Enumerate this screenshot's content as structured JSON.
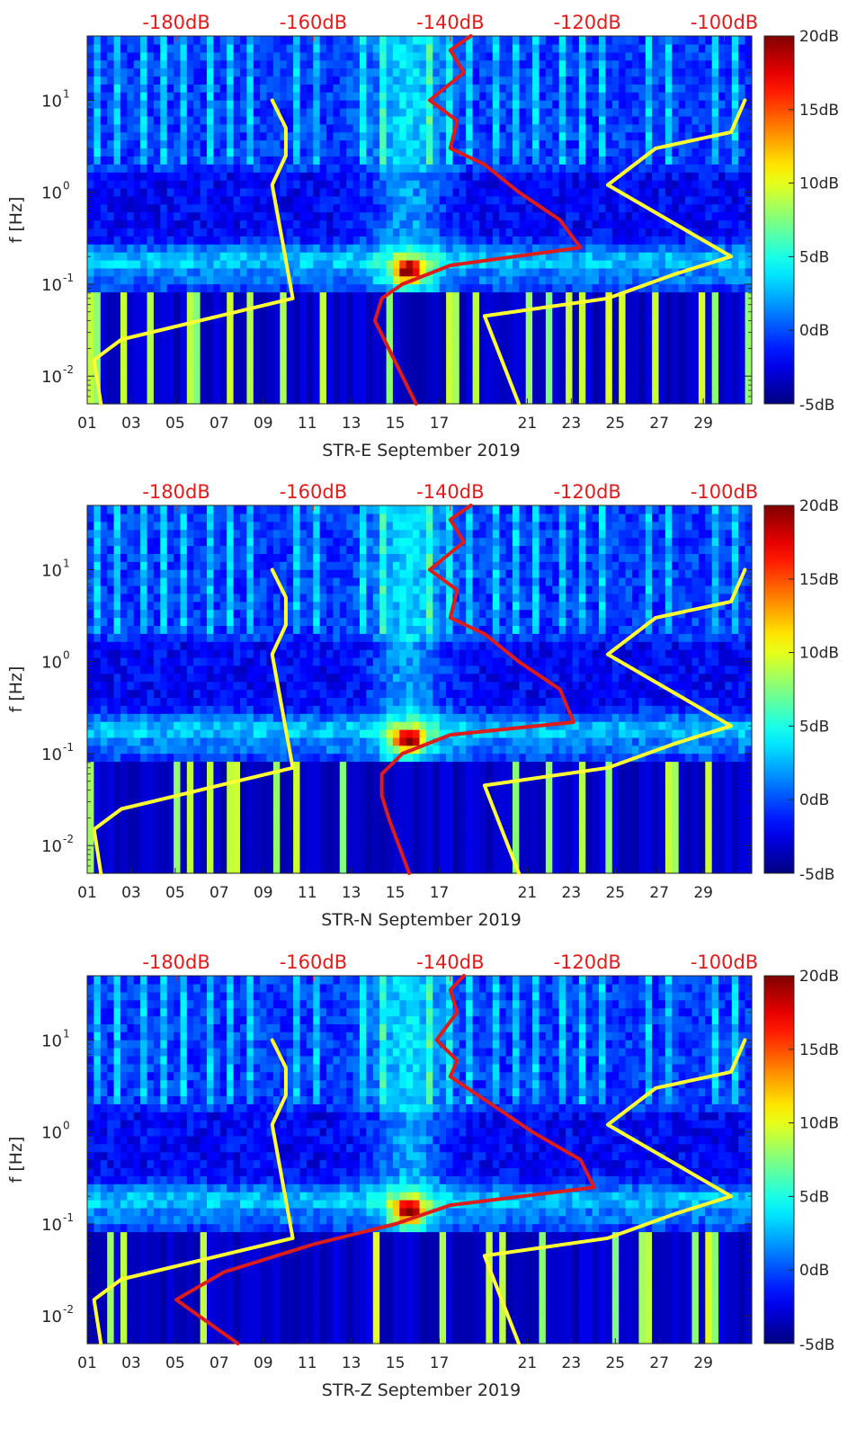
{
  "chart_data": [
    {
      "type": "heatmap",
      "xlabel": "STR-E September 2019",
      "ylabel": "f [Hz]",
      "x_tick_labels": [
        "01",
        "03",
        "05",
        "07",
        "09",
        "11",
        "13",
        "15",
        "17",
        "21",
        "23",
        "25",
        "27",
        "29"
      ],
      "x_tick_days": [
        1,
        3,
        5,
        7,
        9,
        11,
        13,
        15,
        17,
        21,
        23,
        25,
        27,
        29
      ],
      "x_range_days": [
        1,
        31.2
      ],
      "y_scale": "log",
      "y_range_hz": [
        0.005,
        50
      ],
      "y_tick_labels": [
        "10^-2",
        "10^-1",
        "10^0",
        "10^1"
      ],
      "top_axis_labels": [
        "-180dB",
        "-160dB",
        "-140dB",
        "-120dB",
        "-100dB"
      ],
      "top_axis_values_db": [
        -180,
        -160,
        -140,
        -120,
        -100
      ],
      "top_axis_range_db": [
        -193,
        -96
      ],
      "colorbar": {
        "labels": [
          "20dB",
          "15dB",
          "10dB",
          "5dB",
          "0dB",
          "-5dB"
        ],
        "values": [
          20,
          15,
          10,
          5,
          0,
          -5
        ],
        "range": [
          -5,
          20
        ],
        "colormap": "jet"
      },
      "overlay_colors": {
        "yellow": "#ffff33",
        "red": "#dd1c1c",
        "axis_text_red": "#e31a1a"
      },
      "series": [
        {
          "color": "yellow",
          "y_hz": [
            10,
            5,
            2.5,
            1.2,
            0.07,
            0.025,
            0.015,
            0.005
          ],
          "db": [
            -166,
            -164,
            -164,
            -166,
            -163,
            -188,
            -192,
            -191
          ]
        },
        {
          "color": "yellow",
          "y_hz": [
            10,
            4.5,
            3,
            1.2,
            0.2,
            0.13,
            0.07,
            0.045,
            0.005
          ],
          "db": [
            -97,
            -99,
            -110,
            -117,
            -99,
            -107,
            -117,
            -135,
            -130
          ]
        },
        {
          "color": "red",
          "y_hz": [
            50,
            35,
            20,
            10,
            6,
            3,
            2,
            1,
            0.5,
            0.25,
            0.16,
            0.1,
            0.07,
            0.04,
            0.02,
            0.005
          ],
          "db": [
            -137,
            -140,
            -138,
            -143,
            -139,
            -140,
            -135,
            -130,
            -124,
            -121,
            -140,
            -147,
            -150,
            -151,
            -149,
            -145
          ]
        }
      ]
    },
    {
      "type": "heatmap",
      "xlabel": "STR-N September 2019",
      "ylabel": "f [Hz]",
      "x_tick_labels": [
        "01",
        "03",
        "05",
        "07",
        "09",
        "11",
        "13",
        "15",
        "17",
        "21",
        "23",
        "25",
        "27",
        "29"
      ],
      "x_tick_days": [
        1,
        3,
        5,
        7,
        9,
        11,
        13,
        15,
        17,
        21,
        23,
        25,
        27,
        29
      ],
      "x_range_days": [
        1,
        31.2
      ],
      "y_scale": "log",
      "y_range_hz": [
        0.005,
        50
      ],
      "y_tick_labels": [
        "10^-2",
        "10^-1",
        "10^0",
        "10^1"
      ],
      "top_axis_labels": [
        "-180dB",
        "-160dB",
        "-140dB",
        "-120dB",
        "-100dB"
      ],
      "top_axis_values_db": [
        -180,
        -160,
        -140,
        -120,
        -100
      ],
      "top_axis_range_db": [
        -193,
        -96
      ],
      "colorbar": {
        "labels": [
          "20dB",
          "15dB",
          "10dB",
          "5dB",
          "0dB",
          "-5dB"
        ],
        "values": [
          20,
          15,
          10,
          5,
          0,
          -5
        ],
        "range": [
          -5,
          20
        ],
        "colormap": "jet"
      },
      "overlay_colors": {
        "yellow": "#ffff33",
        "red": "#dd1c1c",
        "axis_text_red": "#e31a1a"
      },
      "series": [
        {
          "color": "yellow",
          "y_hz": [
            10,
            5,
            2.5,
            1.2,
            0.07,
            0.025,
            0.015,
            0.005
          ],
          "db": [
            -166,
            -164,
            -164,
            -166,
            -163,
            -188,
            -192,
            -191
          ]
        },
        {
          "color": "yellow",
          "y_hz": [
            10,
            4.5,
            3,
            1.2,
            0.2,
            0.13,
            0.07,
            0.045,
            0.005
          ],
          "db": [
            -97,
            -99,
            -110,
            -117,
            -99,
            -107,
            -117,
            -135,
            -130
          ]
        },
        {
          "color": "red",
          "y_hz": [
            50,
            35,
            20,
            10,
            6,
            3,
            2,
            1,
            0.5,
            0.22,
            0.16,
            0.1,
            0.06,
            0.035,
            0.02,
            0.005
          ],
          "db": [
            -137,
            -140,
            -138,
            -143,
            -139,
            -140,
            -135,
            -130,
            -124,
            -122,
            -140,
            -147,
            -150,
            -150,
            -149,
            -146
          ]
        }
      ]
    },
    {
      "type": "heatmap",
      "xlabel": "STR-Z September 2019",
      "ylabel": "f [Hz]",
      "x_tick_labels": [
        "01",
        "03",
        "05",
        "07",
        "09",
        "11",
        "13",
        "15",
        "17",
        "21",
        "23",
        "25",
        "27",
        "29"
      ],
      "x_tick_days": [
        1,
        3,
        5,
        7,
        9,
        11,
        13,
        15,
        17,
        21,
        23,
        25,
        27,
        29
      ],
      "x_range_days": [
        1,
        31.2
      ],
      "y_scale": "log",
      "y_range_hz": [
        0.005,
        50
      ],
      "y_tick_labels": [
        "10^-2",
        "10^-1",
        "10^0",
        "10^1"
      ],
      "top_axis_labels": [
        "-180dB",
        "-160dB",
        "-140dB",
        "-120dB",
        "-100dB"
      ],
      "top_axis_values_db": [
        -180,
        -160,
        -140,
        -120,
        -100
      ],
      "top_axis_range_db": [
        -193,
        -96
      ],
      "colorbar": {
        "labels": [
          "20dB",
          "15dB",
          "10dB",
          "5dB",
          "0dB",
          "-5dB"
        ],
        "values": [
          20,
          15,
          10,
          5,
          0,
          -5
        ],
        "range": [
          -5,
          20
        ],
        "colormap": "jet"
      },
      "overlay_colors": {
        "yellow": "#ffff33",
        "red": "#dd1c1c",
        "axis_text_red": "#e31a1a"
      },
      "series": [
        {
          "color": "yellow",
          "y_hz": [
            10,
            5,
            2.5,
            1.2,
            0.07,
            0.025,
            0.015,
            0.005
          ],
          "db": [
            -166,
            -164,
            -164,
            -166,
            -163,
            -188,
            -192,
            -191
          ]
        },
        {
          "color": "yellow",
          "y_hz": [
            10,
            4.5,
            3,
            1.2,
            0.2,
            0.13,
            0.07,
            0.045,
            0.005
          ],
          "db": [
            -97,
            -99,
            -110,
            -117,
            -99,
            -107,
            -117,
            -135,
            -130
          ]
        },
        {
          "color": "red",
          "y_hz": [
            50,
            35,
            20,
            10,
            6,
            4,
            2,
            1,
            0.5,
            0.25,
            0.16,
            0.1,
            0.06,
            0.03,
            0.015,
            0.005
          ],
          "db": [
            -138,
            -140,
            -139,
            -142,
            -139,
            -140,
            -134,
            -128,
            -121,
            -119,
            -140,
            -148,
            -160,
            -173,
            -180,
            -171
          ]
        }
      ]
    }
  ]
}
